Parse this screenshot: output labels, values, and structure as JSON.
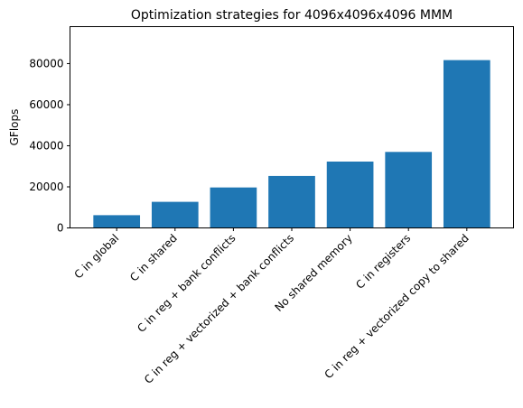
{
  "chart_data": {
    "type": "bar",
    "title": "Optimization strategies for 4096x4096x4096 MMM",
    "xlabel": "",
    "ylabel": "GFlops",
    "categories": [
      "C in global",
      "C in shared",
      "C in reg + bank conflicts",
      "C in reg + vectorized + bank conflicts",
      "No shared memory",
      "C in registers",
      "C in reg + vectorized copy to shared"
    ],
    "values": [
      6200,
      12700,
      19700,
      25300,
      32300,
      37000,
      81700
    ],
    "ylim": [
      0,
      98000
    ],
    "yticks": [
      0,
      20000,
      40000,
      60000,
      80000
    ],
    "bar_color": "#1f77b4",
    "grid": false,
    "legend": "none"
  }
}
